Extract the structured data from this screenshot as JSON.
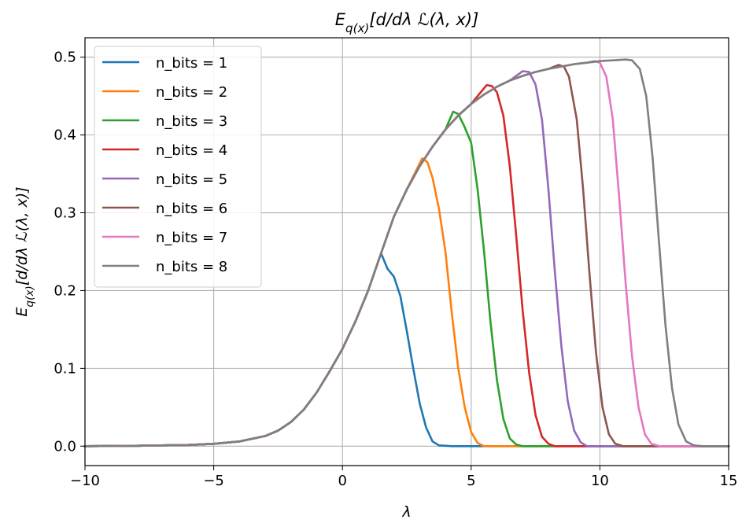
{
  "chart_data": {
    "type": "line",
    "title": "E_q(x)[d/dλ ℒ(λ, x)]",
    "xlabel": "λ",
    "ylabel": "E_q(x)[d/dλ ℒ(λ, x)]",
    "xlim": [
      -10,
      15
    ],
    "ylim": [
      -0.025,
      0.525
    ],
    "xticks": [
      -10,
      -5,
      0,
      5,
      10,
      15
    ],
    "xtick_labels": [
      "−10",
      "−5",
      "0",
      "5",
      "10",
      "15"
    ],
    "yticks": [
      0.0,
      0.1,
      0.2,
      0.3,
      0.4,
      0.5
    ],
    "ytick_labels": [
      "0.0",
      "0.1",
      "0.2",
      "0.3",
      "0.4",
      "0.5"
    ],
    "grid": true,
    "legend_position": "upper-left",
    "envelope": {
      "x": [
        -10,
        -8,
        -6,
        -5,
        -4,
        -3,
        -2.5,
        -2,
        -1.5,
        -1,
        -0.5,
        0,
        0.5,
        1,
        1.5,
        2,
        2.5,
        3,
        3.5,
        4,
        4.5,
        5,
        5.5,
        6,
        6.5,
        7,
        7.5,
        8,
        8.5,
        9,
        9.5,
        10,
        10.5,
        11,
        11.5,
        12,
        13,
        14,
        15
      ],
      "y": [
        0.0,
        0.0005,
        0.0015,
        0.003,
        0.006,
        0.013,
        0.02,
        0.031,
        0.047,
        0.069,
        0.096,
        0.125,
        0.16,
        0.2,
        0.248,
        0.295,
        0.33,
        0.36,
        0.385,
        0.407,
        0.425,
        0.44,
        0.452,
        0.462,
        0.47,
        0.476,
        0.481,
        0.485,
        0.488,
        0.491,
        0.493,
        0.495,
        0.496,
        0.497,
        0.4975,
        0.498,
        0.499,
        0.4995,
        0.5
      ]
    },
    "series": [
      {
        "name": "n_bits = 1",
        "color": "#1f77b4",
        "peak_x": 1.75,
        "peak_y": 0.228,
        "drop": [
          [
            1.75,
            0.228
          ],
          [
            2.0,
            0.218
          ],
          [
            2.25,
            0.193
          ],
          [
            2.5,
            0.148
          ],
          [
            2.75,
            0.1
          ],
          [
            3.0,
            0.055
          ],
          [
            3.25,
            0.024
          ],
          [
            3.5,
            0.006
          ],
          [
            3.75,
            0.001
          ],
          [
            4.25,
            0.0
          ],
          [
            15,
            0.0
          ]
        ]
      },
      {
        "name": "n_bits = 2",
        "color": "#ff7f0e",
        "peak_x": 3.1,
        "peak_y": 0.37,
        "drop": [
          [
            3.1,
            0.37
          ],
          [
            3.3,
            0.365
          ],
          [
            3.5,
            0.345
          ],
          [
            3.75,
            0.305
          ],
          [
            4.0,
            0.25
          ],
          [
            4.25,
            0.17
          ],
          [
            4.5,
            0.1
          ],
          [
            4.75,
            0.05
          ],
          [
            5.0,
            0.018
          ],
          [
            5.25,
            0.004
          ],
          [
            5.5,
            0.0
          ],
          [
            15,
            0.0
          ]
        ]
      },
      {
        "name": "n_bits = 3",
        "color": "#2ca02c",
        "peak_x": 4.3,
        "peak_y": 0.43,
        "drop": [
          [
            4.3,
            0.43
          ],
          [
            4.5,
            0.427
          ],
          [
            4.75,
            0.41
          ],
          [
            5.0,
            0.39
          ],
          [
            5.25,
            0.33
          ],
          [
            5.5,
            0.25
          ],
          [
            5.75,
            0.16
          ],
          [
            6.0,
            0.085
          ],
          [
            6.25,
            0.035
          ],
          [
            6.5,
            0.01
          ],
          [
            6.75,
            0.002
          ],
          [
            7.0,
            0.0
          ],
          [
            15,
            0.0
          ]
        ]
      },
      {
        "name": "n_bits = 4",
        "color": "#d62728",
        "peak_x": 5.6,
        "peak_y": 0.464,
        "drop": [
          [
            5.6,
            0.464
          ],
          [
            5.8,
            0.463
          ],
          [
            6.0,
            0.455
          ],
          [
            6.25,
            0.425
          ],
          [
            6.5,
            0.36
          ],
          [
            6.75,
            0.27
          ],
          [
            7.0,
            0.175
          ],
          [
            7.25,
            0.095
          ],
          [
            7.5,
            0.04
          ],
          [
            7.75,
            0.012
          ],
          [
            8.0,
            0.003
          ],
          [
            8.25,
            0.0
          ],
          [
            15,
            0.0
          ]
        ]
      },
      {
        "name": "n_bits = 5",
        "color": "#9467bd",
        "peak_x": 7.0,
        "peak_y": 0.482,
        "drop": [
          [
            7.0,
            0.482
          ],
          [
            7.25,
            0.481
          ],
          [
            7.5,
            0.465
          ],
          [
            7.75,
            0.42
          ],
          [
            8.0,
            0.33
          ],
          [
            8.25,
            0.225
          ],
          [
            8.5,
            0.13
          ],
          [
            8.75,
            0.058
          ],
          [
            9.0,
            0.02
          ],
          [
            9.25,
            0.005
          ],
          [
            9.5,
            0.0
          ],
          [
            15,
            0.0
          ]
        ]
      },
      {
        "name": "n_bits = 6",
        "color": "#8c564b",
        "peak_x": 8.4,
        "peak_y": 0.49,
        "drop": [
          [
            8.4,
            0.49
          ],
          [
            8.6,
            0.488
          ],
          [
            8.8,
            0.475
          ],
          [
            9.1,
            0.42
          ],
          [
            9.35,
            0.33
          ],
          [
            9.6,
            0.22
          ],
          [
            9.85,
            0.12
          ],
          [
            10.1,
            0.05
          ],
          [
            10.35,
            0.015
          ],
          [
            10.6,
            0.003
          ],
          [
            10.9,
            0.0
          ],
          [
            15,
            0.0
          ]
        ]
      },
      {
        "name": "n_bits = 7",
        "color": "#e377c2",
        "peak_x": 9.8,
        "peak_y": 0.495,
        "drop": [
          [
            9.8,
            0.495
          ],
          [
            10.0,
            0.493
          ],
          [
            10.25,
            0.475
          ],
          [
            10.5,
            0.42
          ],
          [
            10.75,
            0.32
          ],
          [
            11.0,
            0.21
          ],
          [
            11.25,
            0.115
          ],
          [
            11.5,
            0.05
          ],
          [
            11.75,
            0.015
          ],
          [
            12.0,
            0.003
          ],
          [
            12.3,
            0.0
          ],
          [
            15,
            0.0
          ]
        ]
      },
      {
        "name": "n_bits = 8",
        "color": "#7f7f7f",
        "peak_x": 11.0,
        "peak_y": 0.497,
        "drop": [
          [
            11.0,
            0.497
          ],
          [
            11.25,
            0.496
          ],
          [
            11.55,
            0.485
          ],
          [
            11.8,
            0.45
          ],
          [
            12.05,
            0.37
          ],
          [
            12.3,
            0.26
          ],
          [
            12.55,
            0.155
          ],
          [
            12.8,
            0.075
          ],
          [
            13.05,
            0.028
          ],
          [
            13.35,
            0.006
          ],
          [
            13.65,
            0.001
          ],
          [
            14.0,
            0.0
          ],
          [
            15,
            0.0
          ]
        ]
      }
    ]
  }
}
